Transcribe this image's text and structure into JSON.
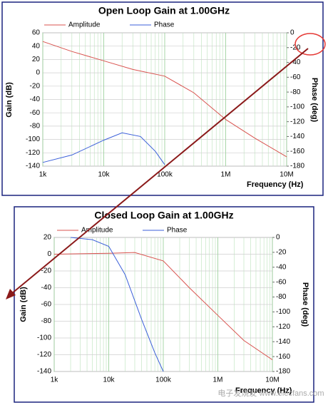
{
  "chart_data": [
    {
      "type": "line",
      "title": "Open Loop Gain at 1.00GHz",
      "x_label": "Frequency (Hz)",
      "y_label": "Gain (dB)",
      "y2_label": "Phase (deg)",
      "log_x": true,
      "grid": true,
      "xlim": [
        1000,
        10000000
      ],
      "xticks": [
        {
          "value": 1000,
          "label": "1k"
        },
        {
          "value": 10000,
          "label": "10k"
        },
        {
          "value": 100000,
          "label": "100k"
        },
        {
          "value": 1000000,
          "label": "1M"
        },
        {
          "value": 10000000,
          "label": "10M"
        }
      ],
      "ylim": [
        -140,
        60
      ],
      "yticks": [
        60,
        40,
        20,
        0,
        -20,
        -40,
        -60,
        -80,
        -100,
        -120,
        -140
      ],
      "y2lim": [
        -180,
        0
      ],
      "y2ticks": [
        0,
        -20,
        -40,
        -60,
        -80,
        -100,
        -120,
        -140,
        -160,
        -180
      ],
      "series": [
        {
          "name": "Amplitude",
          "color": "#d9534f",
          "x": [
            1000,
            3000,
            10000,
            30000,
            100000,
            300000,
            1000000,
            3000000,
            10000000
          ],
          "values": [
            47,
            32,
            18,
            5,
            -5,
            -30,
            -70,
            -98,
            -126
          ]
        },
        {
          "name": "Phase",
          "color": "#3b5fd9",
          "axis": "y2",
          "x": [
            1000,
            3000,
            10000,
            20000,
            40000,
            70000,
            100000
          ],
          "values": [
            -175,
            -165,
            -145,
            -135,
            -140,
            -160,
            -178
          ]
        }
      ]
    },
    {
      "type": "line",
      "title": "Closed Loop Gain at 1.00GHz",
      "x_label": "Frequency (Hz)",
      "y_label": "Gain (dB)",
      "y2_label": "Phase (deg)",
      "log_x": true,
      "grid": true,
      "xlim": [
        1000,
        10000000
      ],
      "xticks": [
        {
          "value": 1000,
          "label": "1k"
        },
        {
          "value": 10000,
          "label": "10k"
        },
        {
          "value": 100000,
          "label": "100k"
        },
        {
          "value": 1000000,
          "label": "1M"
        },
        {
          "value": 10000000,
          "label": "10M"
        }
      ],
      "ylim": [
        -140,
        20
      ],
      "yticks": [
        20,
        0,
        -20,
        -40,
        -60,
        -80,
        -100,
        -120,
        -140
      ],
      "y2lim": [
        -180,
        0
      ],
      "y2ticks": [
        0,
        -20,
        -40,
        -60,
        -80,
        -100,
        -120,
        -140,
        -160,
        -180
      ],
      "series": [
        {
          "name": "Amplitude",
          "color": "#d9534f",
          "x": [
            1000,
            3000,
            10000,
            30000,
            100000,
            300000,
            1000000,
            3000000,
            10000000
          ],
          "values": [
            0,
            0.5,
            1,
            2,
            -8,
            -40,
            -73,
            -103,
            -126
          ]
        },
        {
          "name": "Phase",
          "color": "#3b5fd9",
          "axis": "y2",
          "x": [
            2000,
            5000,
            10000,
            20000,
            40000,
            70000,
            100000
          ],
          "values": [
            0,
            -3,
            -12,
            -50,
            -110,
            -155,
            -180
          ]
        }
      ]
    }
  ],
  "watermark": "电子发烧友 www.elecfans.com"
}
